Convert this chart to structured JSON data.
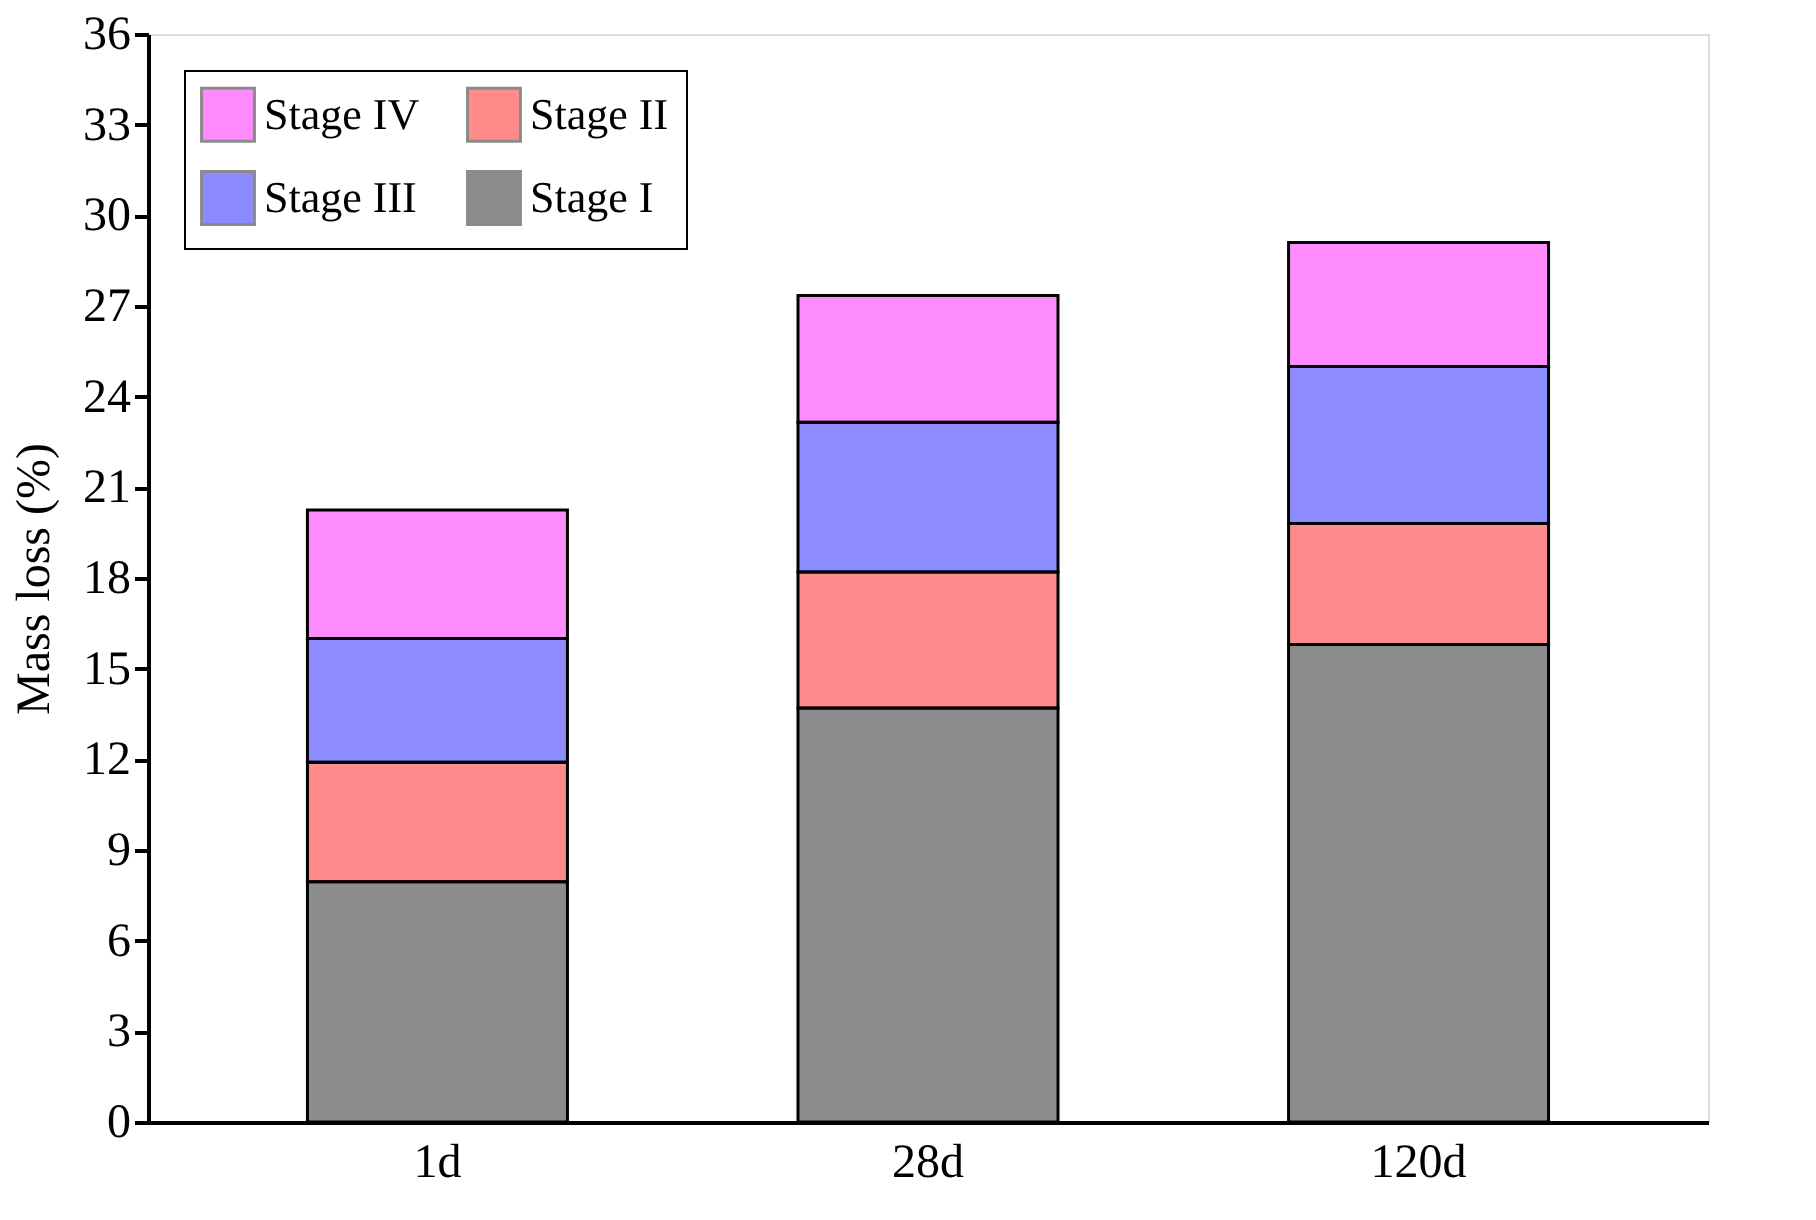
{
  "chart_data": {
    "type": "bar",
    "stacked": true,
    "ylabel": "Mass loss (%)",
    "categories": [
      "1d",
      "28d",
      "120d"
    ],
    "series": [
      {
        "name": "Stage I",
        "color": "#000000",
        "values": [
          7.95,
          13.7,
          15.8
        ]
      },
      {
        "name": "Stage II",
        "color": "#ff0000",
        "values": [
          3.95,
          4.5,
          4.0
        ]
      },
      {
        "name": "Stage III",
        "color": "#0000ff",
        "values": [
          4.1,
          4.95,
          5.2
        ]
      },
      {
        "name": "Stage IV",
        "color": "#ff00ff",
        "values": [
          4.25,
          4.2,
          4.1
        ]
      }
    ],
    "ylim": [
      0,
      36
    ],
    "yticks": [
      0,
      3,
      6,
      9,
      12,
      15,
      18,
      21,
      24,
      27,
      30,
      33,
      36
    ],
    "grid": false,
    "legend": "top left"
  }
}
